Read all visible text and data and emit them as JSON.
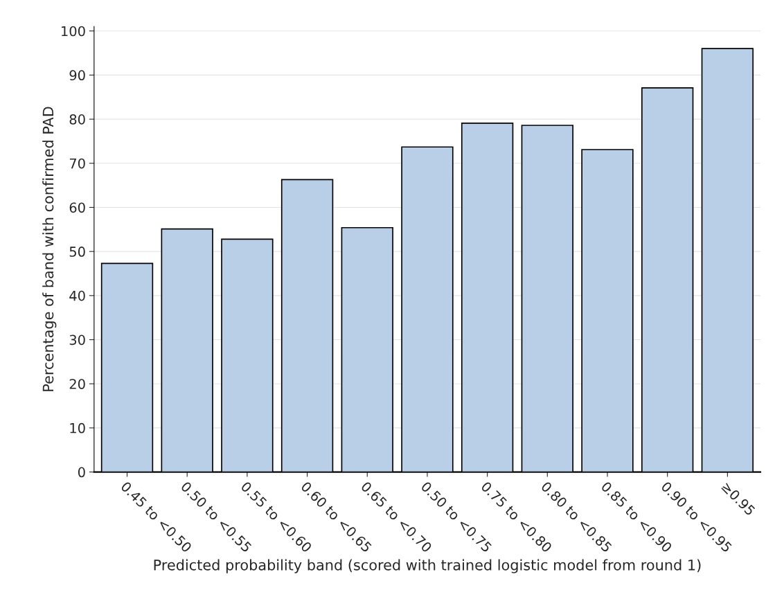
{
  "chart_data": {
    "type": "bar",
    "xlabel": "Predicted probability band (scored with trained logistic model from round 1)",
    "ylabel": "Percentage of band with confirmed PAD",
    "categories": [
      "0.45 to <0.50",
      "0.50 to <0.55",
      "0.55 to <0.60",
      "0.60 to <0.65",
      "0.65 to <0.70",
      "0.50 to <0.75",
      "0.75 to <0.80",
      "0.80 to <0.85",
      "0.85 to <0.90",
      "0.90 to <0.95",
      "≥0.95"
    ],
    "values": [
      47.3,
      55.1,
      52.8,
      66.3,
      55.4,
      73.7,
      79.1,
      78.6,
      73.1,
      87.1,
      96.0
    ],
    "color": "#b9cfe7",
    "ylim": [
      0,
      101
    ],
    "yticks": [
      0,
      10,
      20,
      30,
      40,
      50,
      60,
      70,
      80,
      90,
      100
    ],
    "grid": "y"
  }
}
